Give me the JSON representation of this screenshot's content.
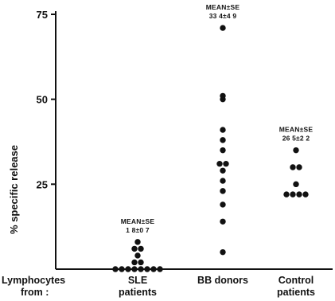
{
  "chart_data": {
    "type": "scatter",
    "ylabel": "% specific release",
    "xlabel_prefix": [
      "Lymphocytes",
      "from :"
    ],
    "ylim": [
      0,
      75
    ],
    "yticks": [
      25,
      50,
      75
    ],
    "grid": false,
    "categories": [
      {
        "label_lines": [
          "SLE",
          "patients"
        ],
        "annotation": [
          "MEAN±SE",
          "1 8±0 7"
        ]
      },
      {
        "label_lines": [
          "BB donors"
        ],
        "annotation": [
          "MEAN±SE",
          "33 4±4 9"
        ]
      },
      {
        "label_lines": [
          "Control",
          "patients"
        ],
        "annotation": [
          "MEAN±SE",
          "26 5±2 2"
        ]
      }
    ],
    "series": [
      {
        "category": 0,
        "points": [
          [
            -3.5,
            0
          ],
          [
            -2.5,
            0
          ],
          [
            -1.5,
            0
          ],
          [
            -0.5,
            0
          ],
          [
            0.5,
            0
          ],
          [
            1.5,
            0
          ],
          [
            2.5,
            0
          ],
          [
            3.5,
            0
          ],
          [
            -0.5,
            2
          ],
          [
            0.5,
            2
          ],
          [
            0,
            4
          ],
          [
            -0.5,
            6
          ],
          [
            0.5,
            6
          ],
          [
            0,
            8
          ]
        ]
      },
      {
        "category": 1,
        "points": [
          [
            0,
            5
          ],
          [
            0,
            14
          ],
          [
            0,
            19
          ],
          [
            0,
            23
          ],
          [
            0,
            26
          ],
          [
            0,
            29
          ],
          [
            -0.5,
            31
          ],
          [
            0.5,
            31
          ],
          [
            0,
            35
          ],
          [
            0,
            38
          ],
          [
            0,
            41
          ],
          [
            0,
            50
          ],
          [
            0,
            51
          ],
          [
            0,
            71
          ]
        ]
      },
      {
        "category": 2,
        "points": [
          [
            -1.5,
            22
          ],
          [
            -0.5,
            22
          ],
          [
            0.5,
            22
          ],
          [
            1.5,
            22
          ],
          [
            0,
            25
          ],
          [
            -0.5,
            30
          ],
          [
            0.5,
            30
          ],
          [
            0,
            35
          ]
        ]
      }
    ]
  }
}
